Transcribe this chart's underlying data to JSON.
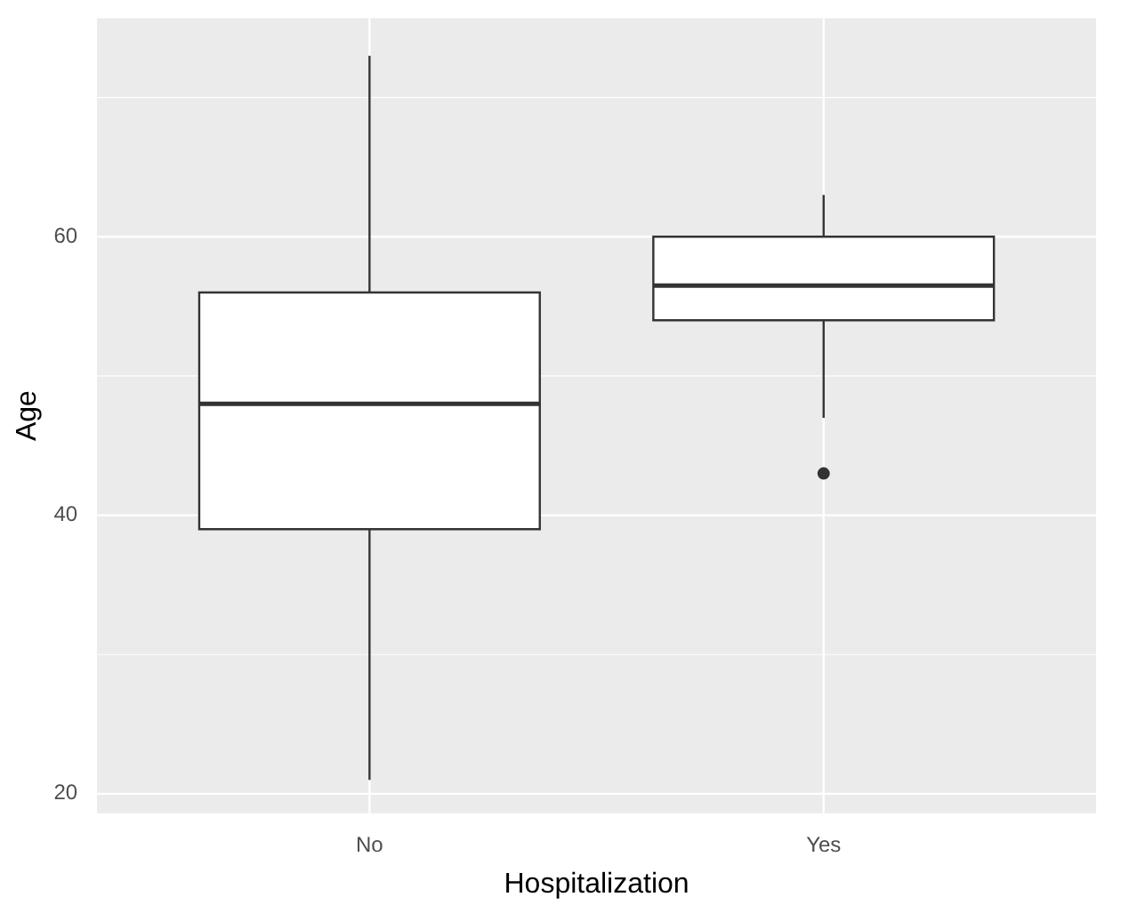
{
  "chart_data": {
    "type": "box",
    "xlabel": "Hospitalization",
    "ylabel": "Age",
    "categories": [
      "No",
      "Yes"
    ],
    "boxes": [
      {
        "low": 21,
        "q1": 39,
        "median": 48,
        "q3": 56,
        "high": 73
      },
      {
        "low": 47,
        "q1": 54,
        "median": 56.5,
        "q3": 60,
        "high": 63,
        "outliers": [
          43
        ]
      }
    ],
    "ylim": [
      18.6,
      75.7
    ],
    "yticks": [
      20,
      40,
      60
    ],
    "grid": true,
    "legend": false
  }
}
